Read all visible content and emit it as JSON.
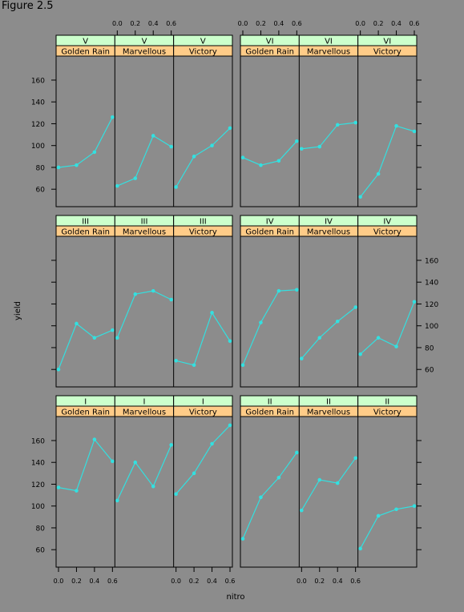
{
  "figure_title": "Figure 2.5",
  "colors": {
    "background": "#8c8c8c",
    "strip_block": "#ccffcc",
    "strip_variety": "#ffcc88",
    "line": "#33e0e0",
    "frame": "#000000"
  },
  "chart_data": {
    "type": "line",
    "xlabel": "nitro",
    "ylabel": "yield",
    "xlim": [
      0,
      0.6
    ],
    "ylim": [
      44,
      182
    ],
    "x_ticks": [
      0.0,
      0.2,
      0.4,
      0.6
    ],
    "x_tick_labels": [
      "0.0",
      "0.2",
      "0.4",
      "0.6"
    ],
    "y_ticks": [
      60,
      80,
      100,
      120,
      140,
      160
    ],
    "y_tick_labels": [
      "60",
      "80",
      "100",
      "120",
      "140",
      "160"
    ],
    "x": [
      0.0,
      0.2,
      0.4,
      0.6
    ],
    "layout_rows": [
      [
        "V",
        "VI"
      ],
      [
        "III",
        "IV"
      ],
      [
        "I",
        "II"
      ]
    ],
    "varieties": [
      "Golden Rain",
      "Marvellous",
      "Victory"
    ],
    "panels": [
      {
        "block": "V",
        "variety": "Golden Rain",
        "values": [
          80,
          82,
          94,
          126
        ]
      },
      {
        "block": "V",
        "variety": "Marvellous",
        "values": [
          63,
          70,
          109,
          99
        ]
      },
      {
        "block": "V",
        "variety": "Victory",
        "values": [
          62,
          90,
          100,
          116
        ]
      },
      {
        "block": "VI",
        "variety": "Golden Rain",
        "values": [
          89,
          82,
          86,
          104
        ]
      },
      {
        "block": "VI",
        "variety": "Marvellous",
        "values": [
          97,
          99,
          119,
          121
        ]
      },
      {
        "block": "VI",
        "variety": "Victory",
        "values": [
          53,
          74,
          118,
          113
        ]
      },
      {
        "block": "III",
        "variety": "Golden Rain",
        "values": [
          60,
          102,
          89,
          96
        ]
      },
      {
        "block": "III",
        "variety": "Marvellous",
        "values": [
          89,
          129,
          132,
          124
        ]
      },
      {
        "block": "III",
        "variety": "Victory",
        "values": [
          68,
          64,
          112,
          86
        ]
      },
      {
        "block": "IV",
        "variety": "Golden Rain",
        "values": [
          64,
          103,
          132,
          133
        ]
      },
      {
        "block": "IV",
        "variety": "Marvellous",
        "values": [
          70,
          89,
          104,
          117
        ]
      },
      {
        "block": "IV",
        "variety": "Victory",
        "values": [
          74,
          89,
          81,
          122
        ]
      },
      {
        "block": "I",
        "variety": "Golden Rain",
        "values": [
          117,
          114,
          161,
          141
        ]
      },
      {
        "block": "I",
        "variety": "Marvellous",
        "values": [
          105,
          140,
          118,
          156
        ]
      },
      {
        "block": "I",
        "variety": "Victory",
        "values": [
          111,
          130,
          157,
          174
        ]
      },
      {
        "block": "II",
        "variety": "Golden Rain",
        "values": [
          70,
          108,
          126,
          149
        ]
      },
      {
        "block": "II",
        "variety": "Marvellous",
        "values": [
          96,
          124,
          121,
          144
        ]
      },
      {
        "block": "II",
        "variety": "Victory",
        "values": [
          61,
          91,
          97,
          100
        ]
      }
    ]
  }
}
